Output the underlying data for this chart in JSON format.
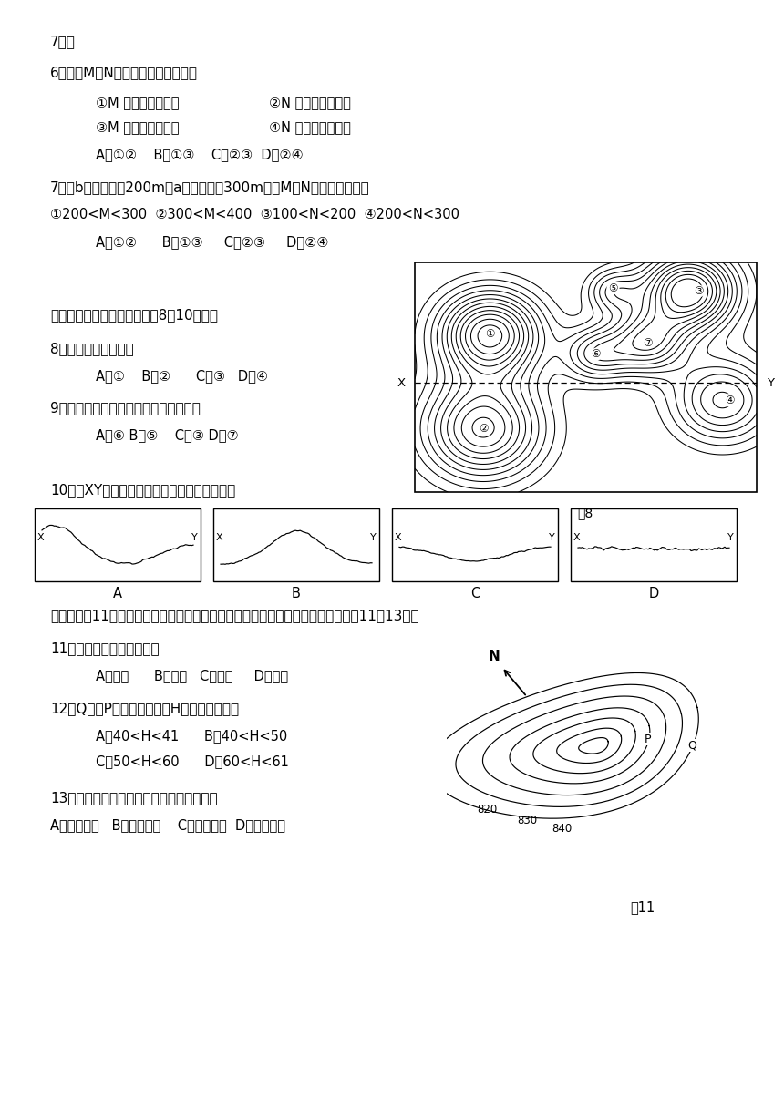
{
  "bg_color": "#ffffff",
  "text_color": "#000000",
  "title": "7题：",
  "q6_main": "6．有关M、N两处地形的正确叙述是",
  "q6_o1": "①M 为山坡上的洼地",
  "q6_o2": "②N 为山坡上的洼地",
  "q6_o3": "③M 为山坡上的小丘",
  "q6_o4": "④N 为山坡上的小丘",
  "q6_ans": "A．①②    B．①③    C．②③  D．②④",
  "q7_main": "7．若b海拔高度为200m，a海拔高度为300m，则M、N处的海拔高度为",
  "q7_opts": "①200<M<300  ②300<M<400  ③100<N<200  ④200<N<300",
  "q7_ans": "A．①②      B．①③     C．②③     D．②④",
  "sec2_intro": "读右侧的等高线地形图，完成8～10小题。",
  "q8_main": "8．图中地势最高的是",
  "q8_ans": "A．①    B．②      C．③   D．④",
  "q9_main": "9．若要修建一座水库，坝址最适宜选在",
  "q9_ans": "A．⑥ B．⑤    C．③ D．⑦",
  "q10_main": "10．沿XY一线所作的剖面，最有可能的是．．",
  "sec3_intro": "读下图（图11），图中等高线表示一种风力堆积的地表形态（单位：米）。回答第11～13题：",
  "q11_main": "11．图示地区的盛行风向是",
  "q11_ans": "A．东北      B．西北   C．东南     D．西南",
  "q12_main": "12．Q点对P点的相对高度（H）最大可以达到",
  "q12_a": "A．40<H<41      B．40<H<50",
  "q12_b": "C．50<H<60      D．60<H<61",
  "q13_main": "13．该类地形在我国可能广泛分布的地区是",
  "q13_ans": "A．东北地区   B．东南地区    C．西北地区  D．西南地区",
  "fig8_caption": "图8",
  "fig11_caption": "图11"
}
